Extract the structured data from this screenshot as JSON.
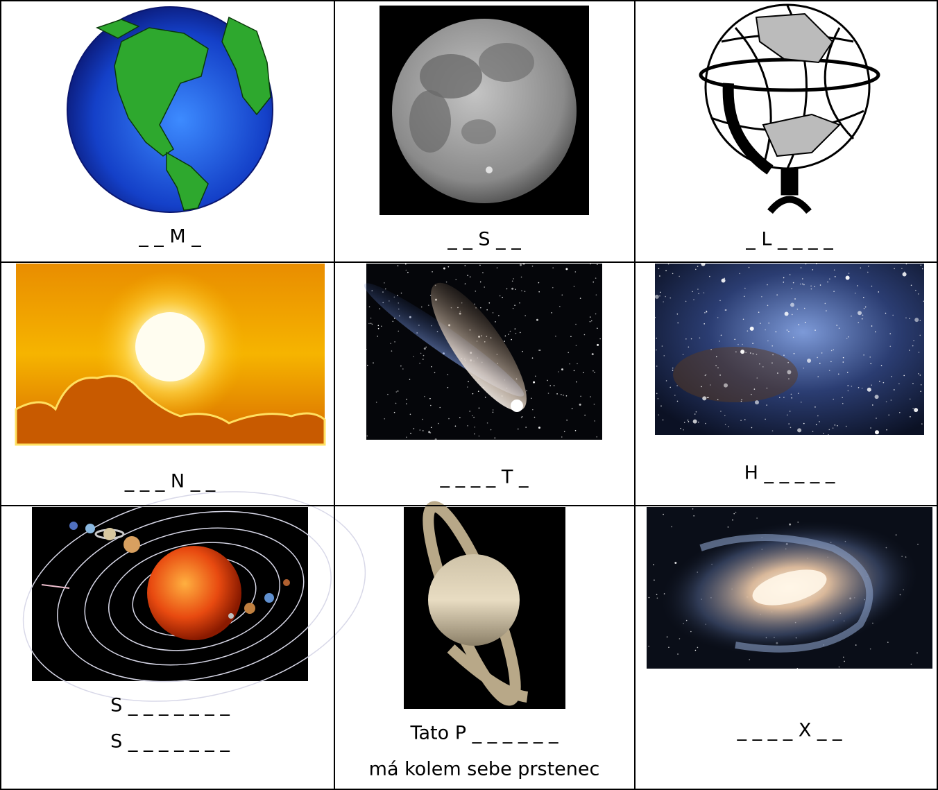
{
  "table": {
    "rows": [
      [
        [
          "_ _ M _"
        ],
        [
          "_ _ S _ _"
        ],
        [
          "_ L _ _ _ _"
        ]
      ],
      [
        [
          "_ _ _ N _ _"
        ],
        [
          "_ _ _ _ T _"
        ],
        [
          "H _ _ _ _ _"
        ]
      ],
      [
        [
          "S _ _ _ _ _ _ _",
          "S _ _ _ _ _ _ _"
        ],
        [
          "Tato P _ _ _ _ _ _",
          "má kolem sebe prstenec"
        ],
        [
          "_ _ _ _ X _ _"
        ]
      ]
    ]
  }
}
